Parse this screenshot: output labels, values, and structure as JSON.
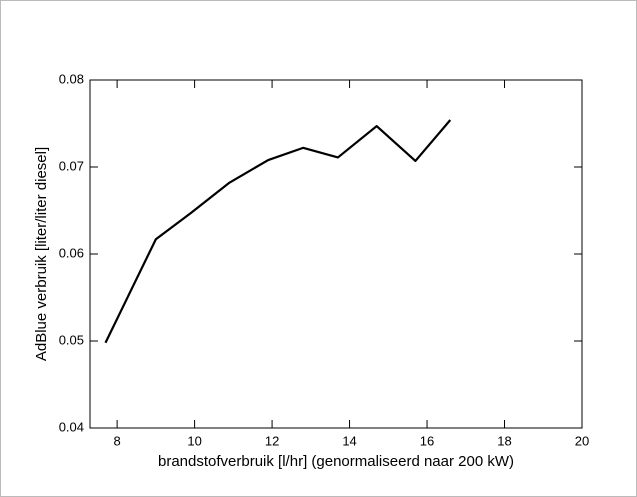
{
  "chart_data": {
    "type": "line",
    "x_label": "brandstofverbruik [l/hr] (genormaliseerd naar 200 kW)",
    "y_label": "AdBlue verbruik [liter/liter diesel]",
    "x": [
      7.7,
      9.0,
      9.9,
      10.9,
      11.9,
      12.8,
      13.7,
      14.7,
      15.7,
      16.6
    ],
    "series": [
      {
        "color": "#000000",
        "values": [
          0.0498,
          0.0617,
          0.0647,
          0.0682,
          0.0708,
          0.0722,
          0.0711,
          0.0747,
          0.0707,
          0.0754
        ]
      }
    ],
    "xlim": [
      7.3,
      20
    ],
    "xticks": [
      8,
      10,
      12,
      14,
      16,
      18,
      20
    ],
    "ylim": [
      0.04,
      0.08
    ],
    "yticks": [
      {
        "value": 0.04,
        "label": "0.04"
      },
      {
        "value": 0.05,
        "label": "0.05"
      },
      {
        "value": 0.06,
        "label": "0.06"
      },
      {
        "value": 0.07,
        "label": "0.07"
      },
      {
        "value": 0.08,
        "label": "0.08"
      }
    ]
  }
}
